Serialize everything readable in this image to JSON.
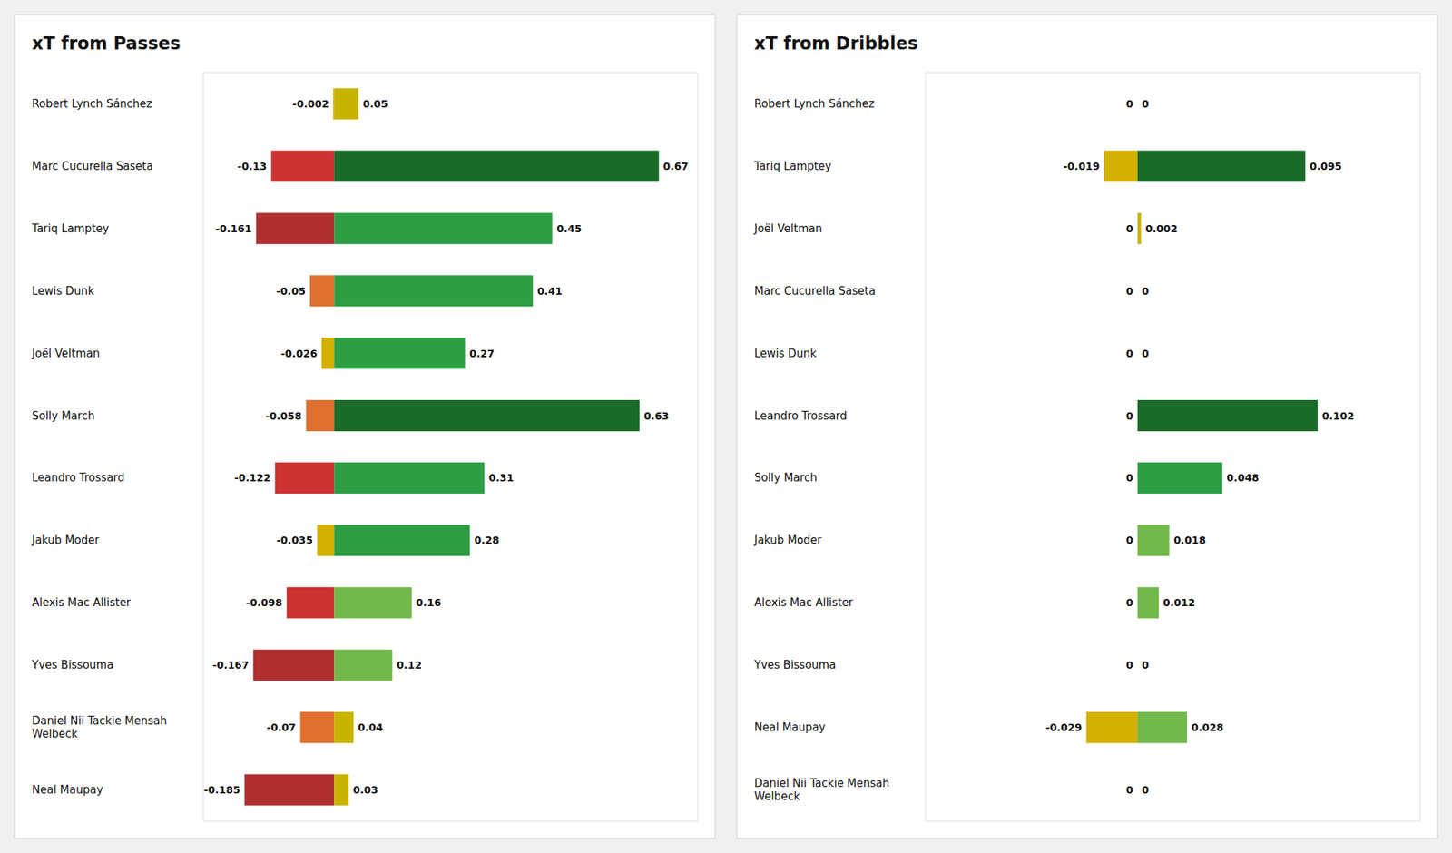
{
  "chart_data": [
    {
      "type": "bar",
      "orientation": "horizontal",
      "title": "xT from Passes",
      "categories": [
        "Robert Lynch Sánchez",
        "Marc Cucurella Saseta",
        "Tariq Lamptey",
        "Lewis Dunk",
        "Joël Veltman",
        "Solly March",
        "Leandro Trossard",
        "Jakub Moder",
        "Alexis Mac Allister",
        "Yves Bissouma",
        "Daniel Nii Tackie Mensah\nWelbeck",
        "Neal Maupay"
      ],
      "series": [
        {
          "values": [
            -0.002,
            -0.13,
            -0.161,
            -0.05,
            -0.026,
            -0.058,
            -0.122,
            -0.035,
            -0.098,
            -0.167,
            -0.07,
            -0.185
          ],
          "colors": [
            "#d4b000",
            "#cc3333",
            "#b03030",
            "#e07030",
            "#d4b000",
            "#e07030",
            "#cc3333",
            "#d4b000",
            "#cc3333",
            "#b03030",
            "#e07030",
            "#b03030"
          ]
        },
        {
          "values": [
            0.05,
            0.67,
            0.45,
            0.41,
            0.27,
            0.63,
            0.31,
            0.28,
            0.16,
            0.12,
            0.04,
            0.03
          ],
          "colors": [
            "#c8b400",
            "#1a6b28",
            "#2e9e45",
            "#2e9e45",
            "#2e9e45",
            "#1a6b28",
            "#2e9e45",
            "#2e9e45",
            "#72b84a",
            "#72b84a",
            "#c8b400",
            "#c8b400"
          ]
        }
      ],
      "xlim": [
        -0.27,
        0.75
      ],
      "tick_labels": false,
      "data_labels": true
    },
    {
      "type": "bar",
      "orientation": "horizontal",
      "title": "xT from Dribbles",
      "categories": [
        "Robert Lynch Sánchez",
        "Tariq Lamptey",
        "Joël Veltman",
        "Marc Cucurella Saseta",
        "Lewis Dunk",
        "Leandro Trossard",
        "Solly March",
        "Jakub Moder",
        "Alexis Mac Allister",
        "Yves Bissouma",
        "Neal Maupay",
        "Daniel Nii Tackie Mensah\nWelbeck"
      ],
      "series": [
        {
          "values": [
            0.0,
            -0.019,
            0.0,
            0.0,
            0.0,
            0.0,
            0.0,
            0.0,
            0.0,
            0.0,
            -0.029,
            0.0
          ],
          "colors": [
            "#e67e22",
            "#d4b000",
            "#e67e22",
            "#e67e22",
            "#e67e22",
            "#e67e22",
            "#e67e22",
            "#e67e22",
            "#e67e22",
            "#e67e22",
            "#d4b000",
            "#e67e22"
          ]
        },
        {
          "values": [
            0.0,
            0.095,
            0.002,
            0.0,
            0.0,
            0.102,
            0.048,
            0.018,
            0.012,
            0.0,
            0.028,
            0.0
          ],
          "colors": [
            "#2e9e45",
            "#1a6b28",
            "#c8b400",
            "#2e9e45",
            "#2e9e45",
            "#1a6b28",
            "#2e9e45",
            "#72b84a",
            "#72b84a",
            "#2e9e45",
            "#72b84a",
            "#2e9e45"
          ]
        }
      ],
      "xlim": [
        -0.12,
        0.16
      ],
      "tick_labels": false,
      "data_labels": true
    }
  ]
}
